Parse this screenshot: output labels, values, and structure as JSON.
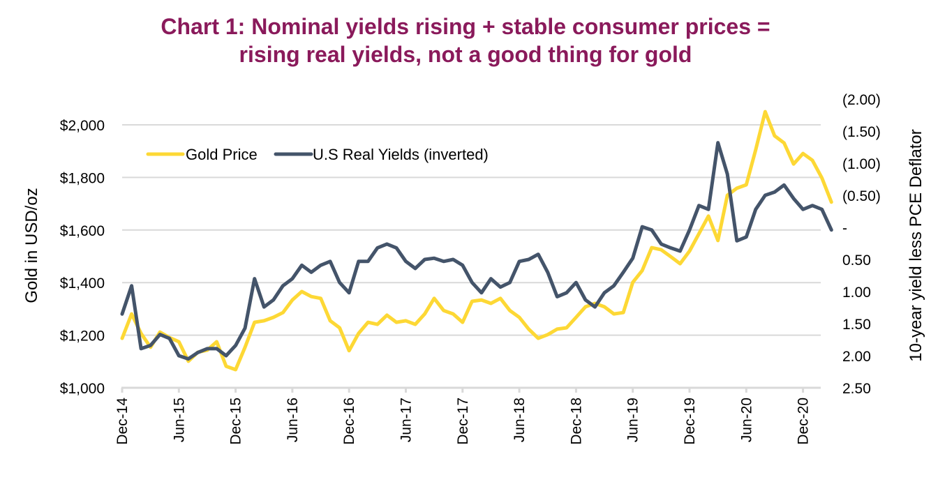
{
  "chart_data": {
    "type": "line",
    "title_lines": [
      "Chart 1: Nominal yields rising + stable consumer prices =",
      "rising real yields, not a good thing for gold"
    ],
    "xlabel": "",
    "ylabel": "Gold in USD/oz",
    "y2label": "10-year yield less PCE Deflator",
    "x_tick_labels": [
      "Dec-14",
      "Jun-15",
      "Dec-15",
      "Jun-16",
      "Dec-16",
      "Jun-17",
      "Dec-17",
      "Jun-18",
      "Dec-18",
      "Jun-19",
      "Dec-19",
      "Jun-20",
      "Dec-20"
    ],
    "x_range_months_from_dec14": [
      0,
      75
    ],
    "ylim": [
      1000,
      2000
    ],
    "y_tick_values": [
      1000,
      1200,
      1400,
      1600,
      1800,
      2000
    ],
    "y_tick_labels": [
      "$1,000",
      "$1,200",
      "$1,400",
      "$1,600",
      "$1,800",
      "$2,000"
    ],
    "y2lim_inverted": [
      -2.0,
      2.5
    ],
    "y2_tick_values": [
      -2.0,
      -1.5,
      -1.0,
      -0.5,
      0,
      0.5,
      1.0,
      1.5,
      2.0,
      2.5
    ],
    "y2_tick_labels": [
      "(2.00)",
      "(1.50)",
      "(1.00)",
      "(0.50)",
      "-",
      "0.50",
      "1.00",
      "1.50",
      "2.00",
      "2.50"
    ],
    "grid": "horizontal",
    "legend_position": "top-left",
    "x_months_from_dec14": [
      0,
      1,
      2,
      3,
      4,
      5,
      6,
      7,
      8,
      9,
      10,
      11,
      12,
      13,
      14,
      15,
      16,
      17,
      18,
      19,
      20,
      21,
      22,
      23,
      24,
      25,
      26,
      27,
      28,
      29,
      30,
      31,
      32,
      33,
      34,
      35,
      36,
      37,
      38,
      39,
      40,
      41,
      42,
      43,
      44,
      45,
      46,
      47,
      48,
      49,
      50,
      51,
      52,
      53,
      54,
      55,
      56,
      57,
      58,
      59,
      60,
      61,
      62,
      63,
      64,
      65,
      66,
      67,
      68,
      69,
      70,
      71,
      72,
      73,
      74,
      75
    ],
    "series": [
      {
        "name": "Gold Price",
        "axis": "left",
        "color": "#fdd835",
        "values": [
          1188,
          1281,
          1207,
          1154,
          1212,
          1191,
          1175,
          1101,
          1135,
          1143,
          1175,
          1082,
          1069,
          1154,
          1249,
          1255,
          1268,
          1286,
          1334,
          1366,
          1347,
          1340,
          1255,
          1228,
          1141,
          1207,
          1249,
          1241,
          1276,
          1249,
          1255,
          1241,
          1281,
          1340,
          1294,
          1281,
          1249,
          1329,
          1334,
          1321,
          1340,
          1294,
          1268,
          1223,
          1188,
          1202,
          1223,
          1228,
          1268,
          1308,
          1321,
          1308,
          1281,
          1286,
          1401,
          1446,
          1533,
          1525,
          1499,
          1472,
          1520,
          1586,
          1653,
          1560,
          1732,
          1759,
          1772,
          1905,
          2050,
          1958,
          1931,
          1851,
          1891,
          1865,
          1798,
          1706
        ]
      },
      {
        "name": "U.S Real Yields (inverted)",
        "axis": "right",
        "color": "#44546a",
        "values": [
          1.35,
          0.91,
          1.89,
          1.84,
          1.67,
          1.73,
          2.0,
          2.05,
          1.95,
          1.89,
          1.89,
          2.0,
          1.84,
          1.57,
          0.8,
          1.24,
          1.13,
          0.91,
          0.8,
          0.59,
          0.7,
          0.59,
          0.53,
          0.86,
          1.02,
          0.53,
          0.53,
          0.32,
          0.26,
          0.32,
          0.53,
          0.64,
          0.5,
          0.48,
          0.53,
          0.5,
          0.59,
          0.86,
          1.02,
          0.8,
          0.93,
          0.86,
          0.53,
          0.5,
          0.42,
          0.7,
          1.08,
          1.02,
          0.86,
          1.13,
          1.24,
          1.02,
          0.91,
          0.7,
          0.48,
          -0.01,
          0.04,
          0.26,
          0.32,
          0.37,
          0.04,
          -0.34,
          -0.28,
          -1.32,
          -0.83,
          0.21,
          0.15,
          -0.28,
          -0.5,
          -0.55,
          -0.66,
          -0.45,
          -0.28,
          -0.34,
          -0.28,
          0.04
        ]
      }
    ]
  },
  "colors": {
    "title": "#8a1a5b",
    "gridline": "#d9d9d9",
    "gold": "#fdd835",
    "yields": "#44546a"
  }
}
